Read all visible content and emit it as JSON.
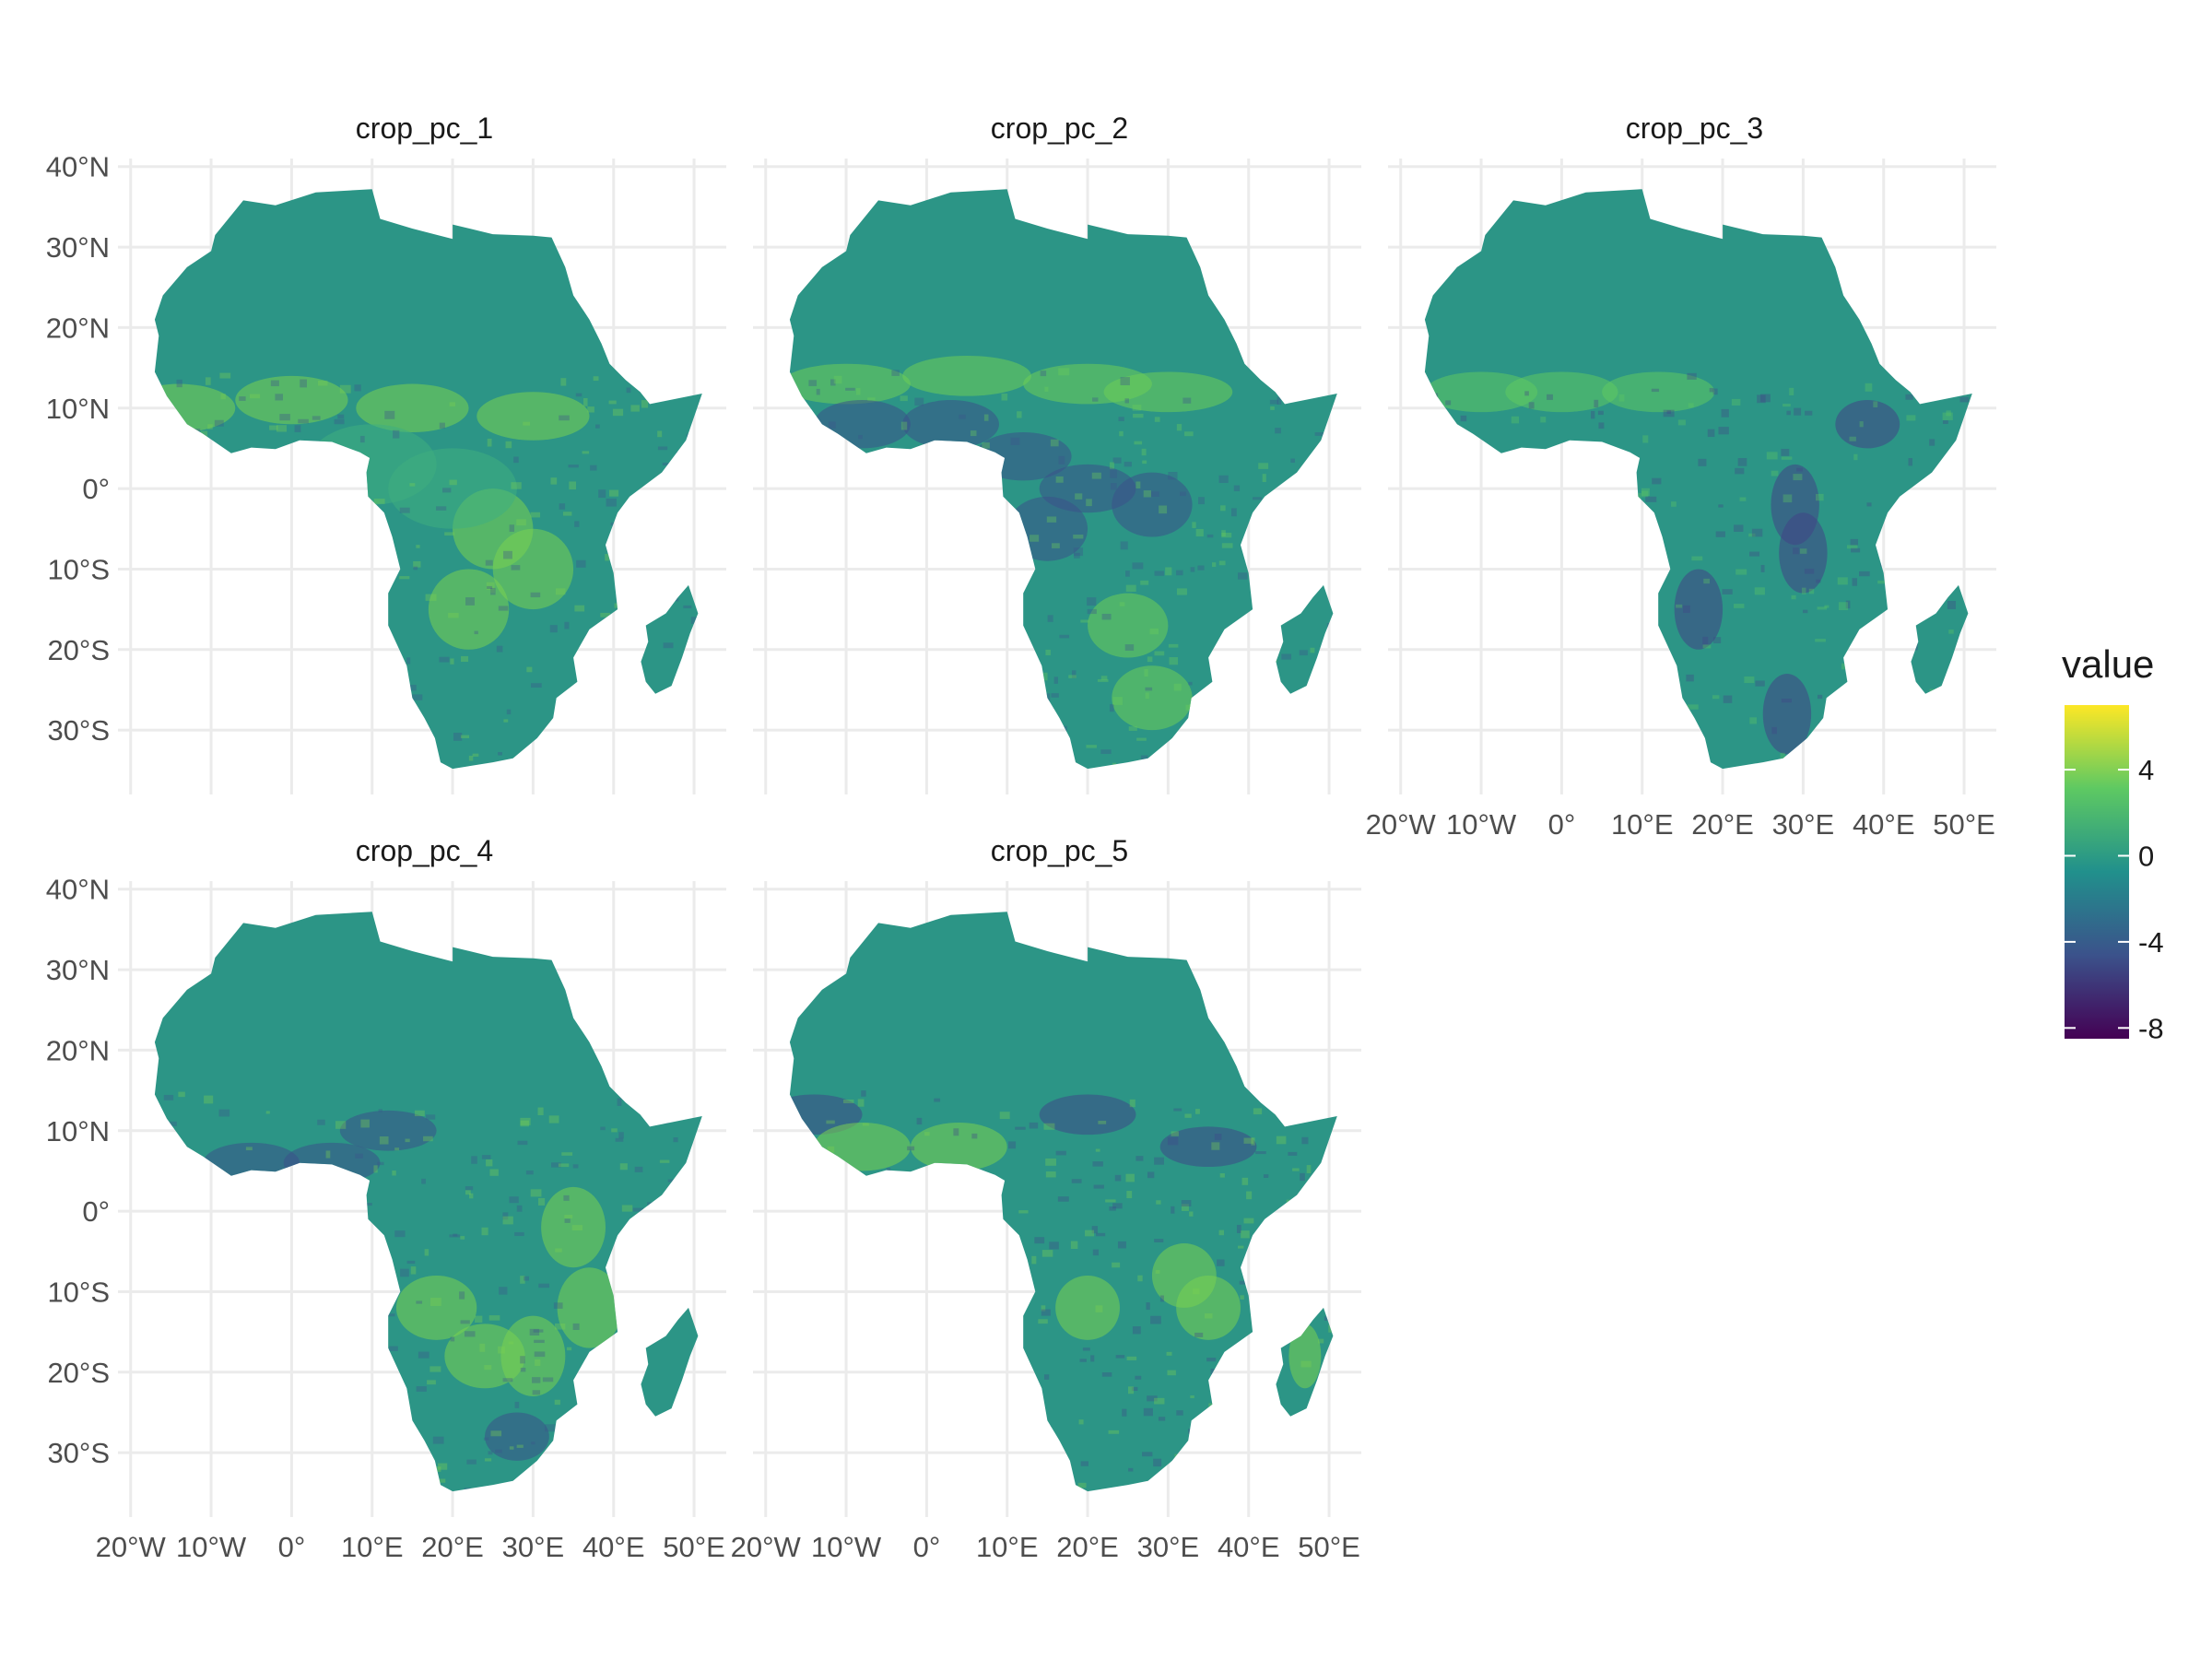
{
  "chart_data": {
    "type": "heatmap",
    "geometry": "raster map of Africa, faceted small multiples",
    "panels": [
      {
        "title": "crop_pc_1",
        "pattern": "sahel-band-high",
        "highlight_color": "#7ad151",
        "low_color": "#3b528b"
      },
      {
        "title": "crop_pc_2",
        "pattern": "west-africa-low",
        "highlight_color": "#6ece58",
        "low_color": "#3b528b"
      },
      {
        "title": "crop_pc_3",
        "pattern": "southern-rift-low",
        "highlight_color": "#5ec962",
        "low_color": "#414487"
      },
      {
        "title": "crop_pc_4",
        "pattern": "east-coast-high",
        "highlight_color": "#7ad151",
        "low_color": "#3b528b"
      },
      {
        "title": "crop_pc_5",
        "pattern": "mixed-central",
        "highlight_color": "#7ad151",
        "low_color": "#3e4989"
      }
    ],
    "x_axis": {
      "ticks": [
        -20,
        -10,
        0,
        10,
        20,
        30,
        40,
        50
      ],
      "tick_labels": [
        "20°W",
        "10°W",
        "0°",
        "10°E",
        "20°E",
        "30°E",
        "40°E",
        "50°E"
      ]
    },
    "y_axis": {
      "ticks": [
        40,
        30,
        20,
        10,
        0,
        -10,
        -20,
        -30
      ],
      "tick_labels": [
        "40°N",
        "30°N",
        "20°N",
        "10°N",
        "0°",
        "10°S",
        "20°S",
        "30°S"
      ]
    },
    "xlim": [
      -21,
      54
    ],
    "ylim": [
      -38,
      41
    ],
    "legend": {
      "title": "value",
      "placement": "right",
      "ticks": [
        4,
        0,
        -4,
        -8
      ],
      "tick_labels": [
        "4",
        "0",
        "-4",
        "-8"
      ],
      "range": [
        -8.5,
        7.0
      ],
      "colormap": [
        "#440154",
        "#3b528b",
        "#21908c",
        "#5ec962",
        "#fde725"
      ]
    },
    "base_color": "#2c9586",
    "grid": true
  }
}
